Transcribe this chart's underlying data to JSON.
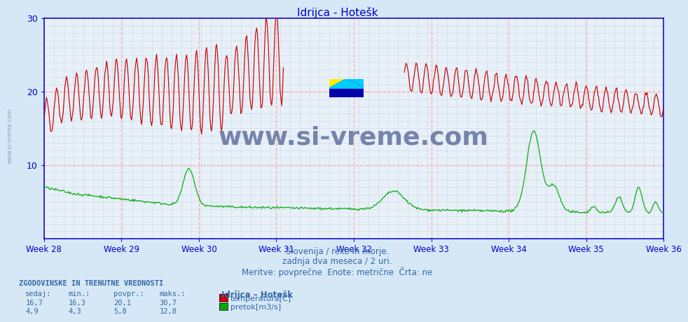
{
  "title": "Idrijca - Hotešk",
  "background_color": "#d6e8f5",
  "plot_bg_color": "#e8f0f8",
  "temp_color": "#cc0000",
  "flow_color": "#00aa00",
  "axis_color": "#0000cc",
  "text_color": "#3366aa",
  "grid_major_color": "#ffaaaa",
  "grid_minor_color": "#c8d8ea",
  "weeks": [
    "Week 28",
    "Week 29",
    "Week 30",
    "Week 31",
    "Week 32",
    "Week 33",
    "Week 34",
    "Week 35",
    "Week 36"
  ],
  "ylim_min": 0,
  "ylim_max": 30,
  "yticks": [
    10,
    20,
    30
  ],
  "subtitle1": "Slovenija / reke in morje.",
  "subtitle2": "zadnja dva meseca / 2 uri.",
  "subtitle3": "Meritve: povprečne  Enote: metrične  Črta: ne",
  "footer_title": "ZGODOVINSKE IN TRENUTNE VREDNOSTI",
  "col_headers": [
    "sedaj:",
    "min.:",
    "povpr.:",
    "maks.:"
  ],
  "temp_stats": [
    "16,7",
    "16,3",
    "20,1",
    "30,7"
  ],
  "flow_stats": [
    "4,9",
    "4,3",
    "5,8",
    "12,8"
  ],
  "station_label": "Idrijca – Hotešk",
  "legend_temp": "temperatura[C]",
  "legend_flow": "pretok[m3/s]",
  "watermark": "www.si-vreme.com",
  "left_watermark": "www.si-vreme.com"
}
